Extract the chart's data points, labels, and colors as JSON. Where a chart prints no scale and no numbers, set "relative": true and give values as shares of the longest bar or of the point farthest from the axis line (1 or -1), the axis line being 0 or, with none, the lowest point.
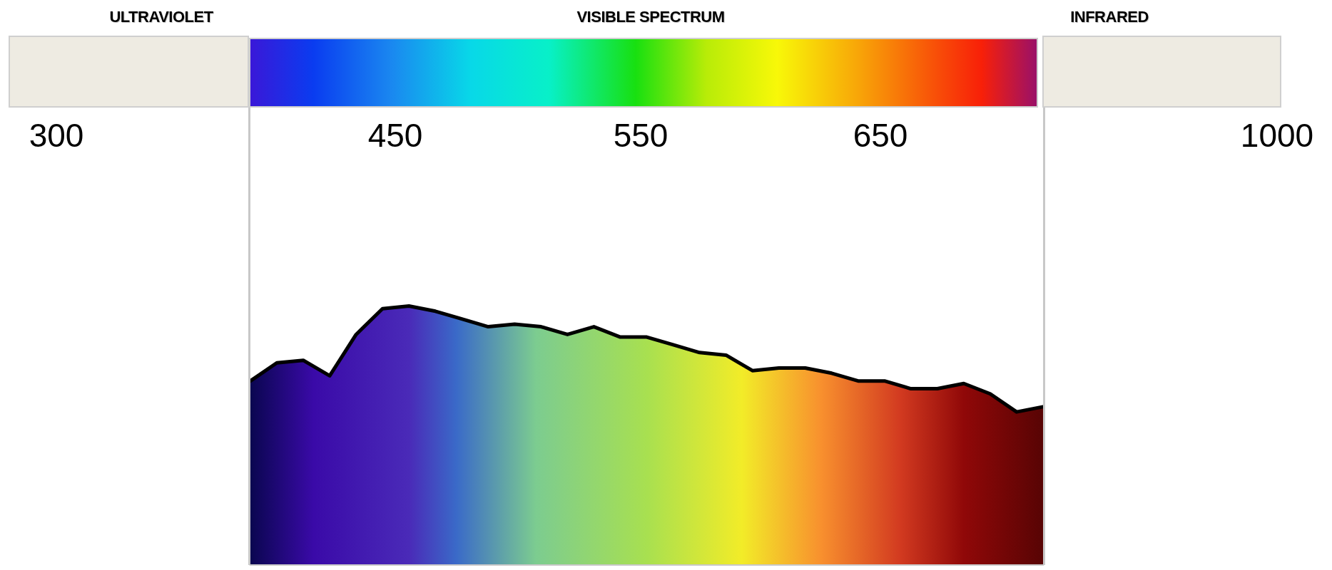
{
  "chart_data": {
    "type": "area",
    "relative": true,
    "categories": [
      null,
      null,
      null,
      null,
      null,
      null,
      null,
      null,
      null,
      null,
      null,
      null,
      null,
      null,
      null,
      null,
      null,
      null,
      null,
      null,
      null,
      null,
      null,
      null,
      null,
      null,
      null,
      null,
      null,
      null,
      null
    ],
    "series": [
      {
        "color": "#000000",
        "values": [
          0.71,
          0.78,
          0.79,
          0.73,
          0.89,
          0.99,
          1.0,
          0.98,
          0.95,
          0.92,
          0.93,
          0.92,
          0.89,
          0.92,
          0.88,
          0.88,
          0.85,
          0.82,
          0.81,
          0.75,
          0.76,
          0.76,
          0.74,
          0.71,
          0.71,
          0.68,
          0.68,
          0.7,
          0.66,
          0.59,
          0.61
        ]
      }
    ],
    "annotations": [
      "ULTRAVIOLET",
      "VISIBLE SPECTRUM",
      "INFRARED",
      "300",
      "450",
      "550",
      "650",
      "1000"
    ],
    "marker": "none",
    "line_style": "solid"
  }
}
